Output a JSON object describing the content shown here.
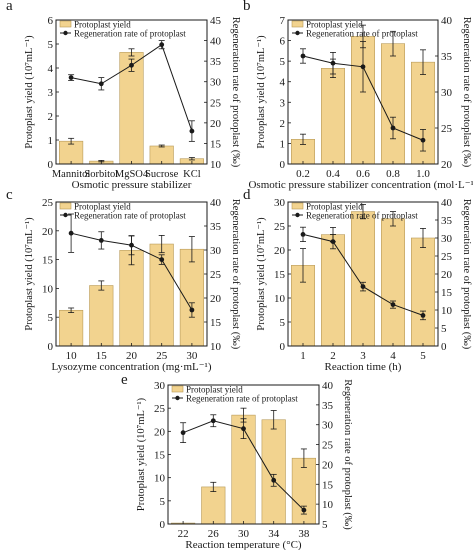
{
  "colors": {
    "bar_fill": "#f2d38f",
    "bar_stroke": "#b89a58",
    "line": "#1a1a1a",
    "axis": "#1a1a1a"
  },
  "legend": {
    "bar": "Protoplast yield",
    "line": "Regeneration rate of protoplast"
  },
  "chart_data": [
    {
      "panel": "a",
      "type": "bar",
      "categories": [
        "Mannitol",
        "Sorbitol",
        "MgSO4",
        "Sucrose",
        "KCl"
      ],
      "xlabel": "Osmotic pressure stabilizer",
      "ylabel": "Protoplast yield (10⁷mL⁻¹)",
      "y2label": "Regeneration rate of protoplast (‰)",
      "ylim": [
        0,
        6
      ],
      "y2lim": [
        10,
        45
      ],
      "yticks": [
        0,
        1,
        2,
        3,
        4,
        5,
        6
      ],
      "y2ticks": [
        10,
        15,
        20,
        25,
        30,
        35,
        40,
        45
      ],
      "series": [
        {
          "kind": "bar",
          "values": [
            0.95,
            0.12,
            4.65,
            0.75,
            0.22
          ],
          "errors": [
            0.12,
            0.03,
            0.15,
            0.04,
            0.05
          ]
        },
        {
          "kind": "line",
          "axis": "right",
          "values": [
            31.0,
            29.5,
            34.0,
            39.0,
            18.0
          ],
          "errors": [
            0.7,
            1.5,
            1.5,
            1.0,
            2.5
          ]
        }
      ],
      "legend_position": "top-left"
    },
    {
      "panel": "b",
      "type": "bar",
      "categories": [
        "0.2",
        "0.4",
        "0.6",
        "0.8",
        "1.0"
      ],
      "xlabel": "Osmotic pressure stabilizer concentration (mol·L⁻¹)",
      "ylabel": "Protoplast yield (10⁷mL⁻¹)",
      "y2label": "Regeneration rate of protoplast (‰)",
      "ylim": [
        0,
        7
      ],
      "y2lim": [
        20,
        40
      ],
      "yticks": [
        0,
        1,
        2,
        3,
        4,
        5,
        6,
        7
      ],
      "y2ticks": [
        20,
        25,
        30,
        35,
        40
      ],
      "series": [
        {
          "kind": "bar",
          "values": [
            1.2,
            4.65,
            6.2,
            5.85,
            4.95
          ],
          "errors": [
            0.25,
            0.45,
            0.55,
            0.6,
            0.6
          ]
        },
        {
          "kind": "line",
          "axis": "right",
          "values": [
            35.0,
            34.0,
            33.5,
            25.0,
            23.3
          ],
          "errors": [
            1.0,
            1.5,
            3.5,
            1.5,
            1.5
          ]
        }
      ],
      "legend_position": "top-left"
    },
    {
      "panel": "c",
      "type": "bar",
      "categories": [
        "10",
        "15",
        "20",
        "25",
        "30"
      ],
      "xlabel": "Lysozyme concentration (mg·mL⁻¹)",
      "ylabel": "Protoplast yield (10⁷mL⁻¹)",
      "y2label": "Regeneration rate of protoplast (‰)",
      "ylim": [
        0,
        25
      ],
      "y2lim": [
        10,
        40
      ],
      "yticks": [
        0,
        5,
        10,
        15,
        20,
        25
      ],
      "y2ticks": [
        10,
        15,
        20,
        25,
        30,
        35,
        40
      ],
      "series": [
        {
          "kind": "bar",
          "values": [
            6.2,
            10.5,
            16.6,
            17.7,
            16.8
          ],
          "errors": [
            0.4,
            0.8,
            2.5,
            1.5,
            2.2
          ]
        },
        {
          "kind": "line",
          "axis": "right",
          "values": [
            33.5,
            32.0,
            31.0,
            28.0,
            17.5
          ],
          "errors": [
            4.0,
            1.8,
            2.0,
            1.0,
            1.5
          ]
        }
      ],
      "legend_position": "top-left"
    },
    {
      "panel": "d",
      "type": "bar",
      "categories": [
        "1",
        "2",
        "3",
        "4",
        "5"
      ],
      "xlabel": "Reaction time (h)",
      "ylabel": "Protoplast yield (10⁷mL⁻¹)",
      "y2label": "Regeneration rate of protoplast (‰)",
      "ylim": [
        0,
        30
      ],
      "y2lim": [
        0,
        40
      ],
      "yticks": [
        0,
        5,
        10,
        15,
        20,
        25,
        30
      ],
      "y2ticks": [
        0,
        5,
        10,
        15,
        20,
        25,
        30,
        35,
        40
      ],
      "series": [
        {
          "kind": "bar",
          "values": [
            16.8,
            23.2,
            28.0,
            26.5,
            22.5
          ],
          "errors": [
            3.5,
            1.5,
            1.5,
            1.5,
            2.0
          ]
        },
        {
          "kind": "line",
          "axis": "right",
          "values": [
            31.0,
            29.0,
            16.5,
            11.5,
            8.5
          ],
          "errors": [
            2.0,
            2.0,
            1.2,
            1.0,
            1.2
          ]
        }
      ],
      "legend_position": "top-left"
    },
    {
      "panel": "e",
      "type": "bar",
      "categories": [
        "22",
        "26",
        "30",
        "34",
        "38"
      ],
      "xlabel": "Reaction temperature (°C)",
      "ylabel": "Protoplast yield (10⁷mL⁻¹)",
      "y2label": "Regeneration rate of protoplast (‰)",
      "ylim": [
        0,
        30
      ],
      "y2lim": [
        5,
        40
      ],
      "yticks": [
        0,
        5,
        10,
        15,
        20,
        25,
        30
      ],
      "y2ticks": [
        5,
        10,
        15,
        20,
        25,
        30,
        35,
        40
      ],
      "series": [
        {
          "kind": "bar",
          "values": [
            0.2,
            8.0,
            23.5,
            22.5,
            14.2
          ],
          "errors": [
            0,
            1.0,
            1.5,
            2.0,
            2.0
          ]
        },
        {
          "kind": "line",
          "axis": "right",
          "values": [
            28.0,
            31.0,
            29.0,
            16.0,
            8.5
          ],
          "errors": [
            2.5,
            1.5,
            2.5,
            1.5,
            1.0
          ]
        }
      ],
      "legend_position": "top-left"
    }
  ]
}
